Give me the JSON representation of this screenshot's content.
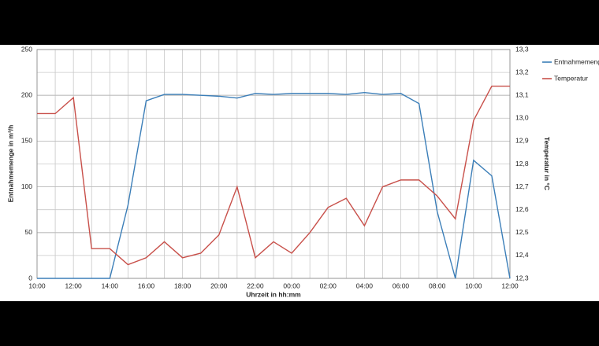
{
  "chart_data": {
    "type": "line",
    "categories": [
      "10:00",
      null,
      "12:00",
      null,
      "14:00",
      null,
      "16:00",
      null,
      "18:00",
      null,
      "20:00",
      null,
      "22:00",
      null,
      "00:00",
      null,
      "02:00",
      null,
      "04:00",
      null,
      "06:00",
      null,
      "08:00",
      null,
      "10:00",
      null,
      "12:00"
    ],
    "series": [
      {
        "name": "Entnahmemenge",
        "color": "#3b7eb8",
        "values": [
          0,
          0,
          0,
          0,
          0,
          80,
          194,
          201,
          201,
          200,
          199,
          197,
          202,
          201,
          202,
          202,
          202,
          201,
          203,
          201,
          202,
          191,
          73,
          0,
          129,
          112,
          0
        ]
      },
      {
        "name": "Temperatur",
        "color": "#c8504a",
        "axis": "y2",
        "values": [
          13.02,
          13.02,
          13.09,
          12.43,
          12.43,
          12.36,
          12.39,
          12.46,
          12.39,
          12.41,
          12.49,
          12.7,
          12.39,
          12.46,
          12.41,
          12.5,
          12.61,
          12.65,
          12.53,
          12.7,
          12.73,
          12.73,
          12.66,
          12.56,
          12.99,
          13.14,
          13.14
        ]
      }
    ],
    "ylim": [
      0,
      250
    ],
    "yticks": [
      0,
      50,
      100,
      150,
      200,
      250
    ],
    "y2lim": [
      12.3,
      13.3
    ],
    "y2ticks": [
      {
        "value": 12.3,
        "label": "12,3"
      },
      {
        "value": 12.4,
        "label": "12,4"
      },
      {
        "value": 12.5,
        "label": "12,5"
      },
      {
        "value": 12.6,
        "label": "12,6"
      },
      {
        "value": 12.7,
        "label": "12,7"
      },
      {
        "value": 12.8,
        "label": "12,8"
      },
      {
        "value": 12.9,
        "label": "12,9"
      },
      {
        "value": 13.0,
        "label": "13,0"
      },
      {
        "value": 13.1,
        "label": "13,1"
      },
      {
        "value": 13.2,
        "label": "13,2"
      },
      {
        "value": 13.3,
        "label": "13,3"
      }
    ],
    "ylabel": "Entnahmemenge in m³/h",
    "y2label": "Temperatur in °C",
    "xlabel": "Uhrzeit in hh:mm",
    "grid": true
  }
}
